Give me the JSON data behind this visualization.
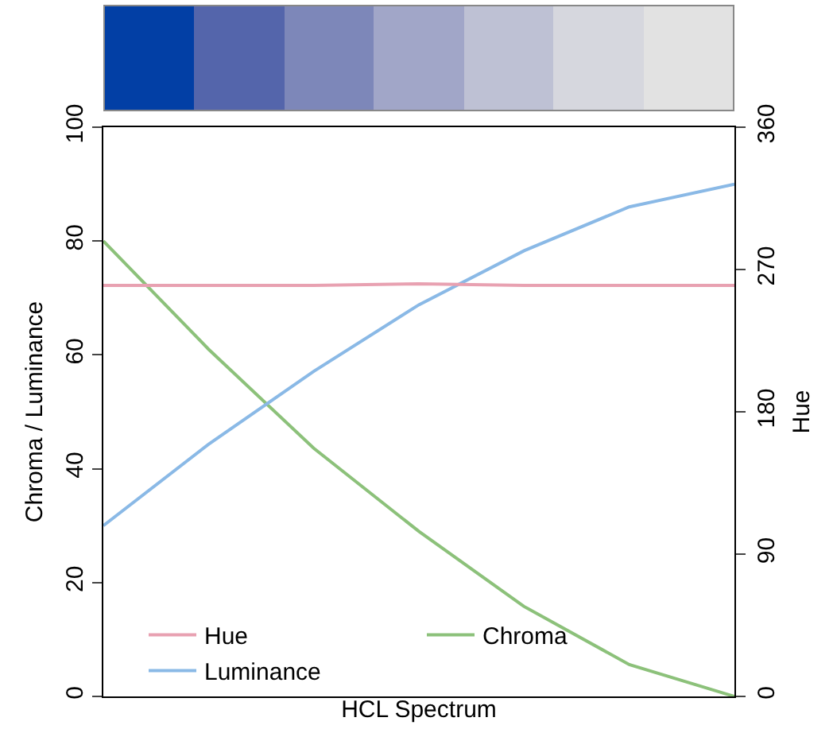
{
  "chart_data": {
    "type": "line",
    "xlabel": "HCL Spectrum",
    "ylabel": "Chroma / Luminance",
    "y2label": "Hue",
    "categories": [
      null,
      null,
      null,
      null,
      null,
      null,
      null
    ],
    "series": [
      {
        "name": "Hue",
        "color": "#e8a1b1",
        "axis": "y2",
        "values": [
          260,
          260,
          260,
          261,
          260,
          260,
          260
        ]
      },
      {
        "name": "Chroma",
        "color": "#8cc17a",
        "values": [
          80,
          61,
          43.6,
          29,
          15.8,
          5.6,
          0
        ]
      },
      {
        "name": "Luminance",
        "color": "#8ab9e6",
        "values": [
          30,
          44.3,
          57.1,
          68.8,
          78.3,
          86,
          90
        ]
      }
    ],
    "ylim": [
      0,
      100
    ],
    "yticks": [
      0,
      20,
      40,
      60,
      80,
      100
    ],
    "y2lim": [
      0,
      360
    ],
    "y2ticks": [
      0,
      90,
      180,
      270,
      360
    ],
    "legend": "bottom"
  }
}
